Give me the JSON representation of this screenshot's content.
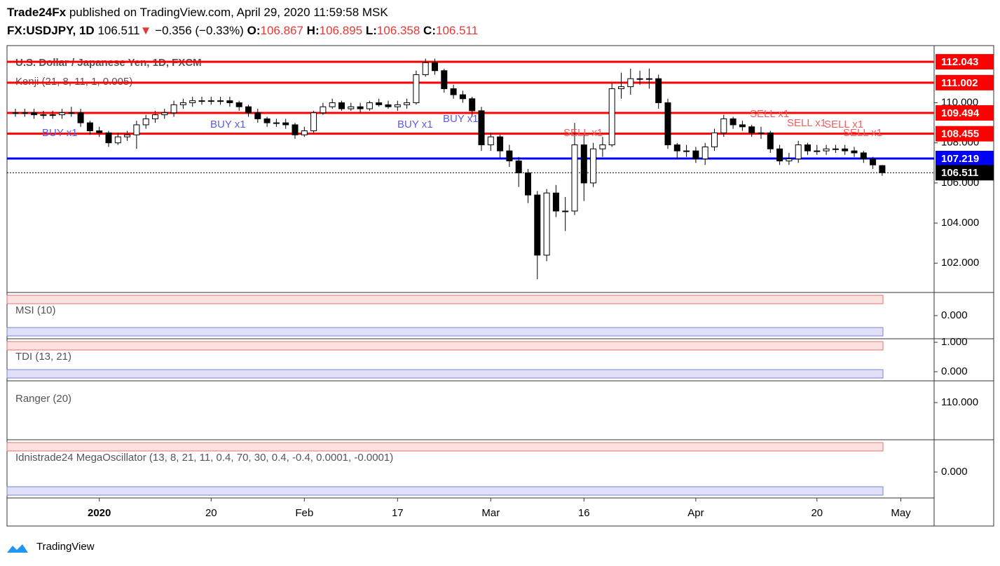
{
  "header": {
    "publisher": "Trade24Fx",
    "published": "published on TradingView.com, April 29, 2020 11:59:58 MSK",
    "symbol": "FX:USDJPY, 1D",
    "price": "106.511",
    "arrow": "▼",
    "change": "−0.356 (−0.33%)",
    "o_label": "O:",
    "o": "106.867",
    "h_label": "H:",
    "h": "106.895",
    "l_label": "L:",
    "l": "106.358",
    "c_label": "C:",
    "c": "106.511"
  },
  "chart_data": {
    "type": "candlestick",
    "title": "U.S. Dollar / Japanese Yen, 1D, FXCM",
    "subtitle": "Kenji (21, 8, 11, 1, 0.005)",
    "categories": [
      null,
      null,
      null,
      null,
      null,
      null,
      null,
      null,
      null,
      "2020",
      null,
      null,
      null,
      null,
      null,
      null,
      null,
      null,
      null,
      null,
      null,
      "20",
      null,
      null,
      null,
      null,
      null,
      null,
      null,
      null,
      null,
      "Feb",
      null,
      null,
      null,
      null,
      null,
      null,
      null,
      null,
      null,
      "17",
      null,
      null,
      null,
      null,
      null,
      null,
      null,
      null,
      null,
      "Mar",
      null,
      null,
      null,
      null,
      null,
      null,
      null,
      null,
      null,
      "16",
      null,
      null,
      null,
      null,
      null,
      null,
      null,
      null,
      null,
      null,
      null,
      "Apr",
      null,
      null,
      null,
      null,
      null,
      null,
      null,
      null,
      null,
      null,
      null,
      null,
      "20",
      null,
      null,
      null,
      null,
      null,
      null,
      null,
      null,
      "May"
    ],
    "open": [
      109.5,
      109.5,
      109.5,
      109.4,
      109.4,
      109.4,
      109.5,
      109.5,
      109.0,
      108.6,
      108.5,
      108.0,
      108.3,
      108.4,
      108.9,
      109.2,
      109.4,
      109.5,
      109.9,
      110.0,
      110.1,
      110.1,
      110.1,
      110.1,
      110.0,
      109.8,
      109.5,
      109.2,
      109.0,
      109.0,
      108.9,
      108.4,
      108.6,
      109.5,
      109.8,
      110.0,
      109.7,
      109.8,
      109.7,
      110.0,
      109.9,
      109.8,
      109.9,
      110.0,
      111.4,
      112.0,
      111.6,
      110.7,
      110.4,
      110.2,
      109.6,
      107.9,
      108.3,
      107.6,
      107.1,
      106.5,
      105.4,
      102.4,
      105.5,
      104.6,
      104.6,
      107.9,
      106.0,
      107.7,
      107.9,
      110.7,
      110.8,
      111.2,
      111.2,
      111.2,
      110.0,
      107.9,
      107.6,
      107.6,
      107.2,
      107.8,
      108.5,
      109.2,
      108.9,
      108.8,
      108.5,
      108.5,
      107.7,
      107.1,
      107.2,
      107.9,
      107.6,
      107.6,
      107.7,
      107.7,
      107.6,
      107.5,
      107.2,
      106.867,
      null,
      null
    ],
    "high": [
      109.7,
      109.7,
      109.7,
      109.6,
      109.6,
      109.7,
      109.8,
      109.7,
      109.1,
      108.8,
      108.6,
      108.5,
      108.6,
      109.1,
      109.4,
      109.6,
      109.7,
      110.1,
      110.2,
      110.3,
      110.3,
      110.3,
      110.3,
      110.3,
      110.1,
      109.9,
      109.7,
      109.3,
      109.2,
      109.2,
      109.0,
      108.8,
      109.6,
      110.0,
      110.2,
      110.1,
      110.0,
      110.0,
      110.1,
      110.2,
      110.1,
      110.1,
      110.2,
      111.6,
      112.2,
      112.2,
      111.7,
      110.9,
      110.6,
      110.3,
      109.8,
      108.5,
      108.4,
      107.9,
      107.3,
      106.7,
      105.6,
      105.7,
      105.9,
      105.3,
      109.0,
      108.4,
      108.0,
      108.3,
      111.0,
      111.5,
      111.7,
      111.6,
      111.7,
      111.4,
      110.2,
      108.0,
      107.9,
      107.8,
      108.0,
      108.7,
      109.4,
      109.3,
      109.1,
      108.9,
      108.8,
      108.6,
      107.9,
      107.5,
      108.1,
      108.0,
      107.9,
      107.9,
      107.9,
      107.9,
      107.8,
      107.6,
      107.3,
      106.895,
      null,
      null
    ],
    "low": [
      109.3,
      109.3,
      109.2,
      109.2,
      109.2,
      109.2,
      109.3,
      108.8,
      108.4,
      108.3,
      107.8,
      107.9,
      108.1,
      107.7,
      108.7,
      109.0,
      109.2,
      109.3,
      109.7,
      109.8,
      109.9,
      109.9,
      109.9,
      109.8,
      109.6,
      109.3,
      109.0,
      108.8,
      108.8,
      108.7,
      108.2,
      108.3,
      108.5,
      109.4,
      109.7,
      109.6,
      109.6,
      109.5,
      109.6,
      109.8,
      109.7,
      109.6,
      109.7,
      109.9,
      111.3,
      111.4,
      110.5,
      110.2,
      110.0,
      109.3,
      107.6,
      107.6,
      107.2,
      106.8,
      105.8,
      105.0,
      101.2,
      102.1,
      104.3,
      103.6,
      104.4,
      105.1,
      105.8,
      107.3,
      107.8,
      110.2,
      110.4,
      110.9,
      110.7,
      109.7,
      107.7,
      107.2,
      107.3,
      107.0,
      106.9,
      107.6,
      108.3,
      108.7,
      108.6,
      108.3,
      108.2,
      107.5,
      106.9,
      106.9,
      107.0,
      107.4,
      107.4,
      107.4,
      107.5,
      107.4,
      107.3,
      107.0,
      106.7,
      106.358,
      null,
      null
    ],
    "close": [
      109.5,
      109.5,
      109.4,
      109.4,
      109.4,
      109.5,
      109.5,
      109.0,
      108.6,
      108.5,
      108.0,
      108.3,
      108.4,
      108.9,
      109.2,
      109.4,
      109.5,
      109.9,
      110.0,
      110.1,
      110.1,
      110.1,
      110.1,
      110.0,
      109.8,
      109.5,
      109.2,
      109.0,
      109.0,
      108.9,
      108.4,
      108.6,
      109.5,
      109.8,
      110.0,
      109.7,
      109.8,
      109.7,
      110.0,
      109.9,
      109.8,
      109.9,
      110.0,
      111.4,
      112.0,
      111.6,
      110.7,
      110.4,
      110.2,
      109.6,
      107.9,
      108.3,
      107.6,
      107.1,
      106.5,
      105.4,
      102.4,
      105.5,
      104.6,
      104.6,
      107.9,
      106.0,
      107.7,
      107.9,
      110.7,
      110.8,
      111.2,
      111.2,
      111.2,
      110.0,
      107.9,
      107.6,
      107.6,
      107.2,
      107.8,
      108.5,
      109.2,
      108.9,
      108.8,
      108.5,
      108.5,
      107.7,
      107.1,
      107.2,
      107.9,
      107.6,
      107.6,
      107.7,
      107.7,
      107.6,
      107.5,
      107.2,
      106.9,
      106.511,
      null,
      null
    ],
    "ylim": [
      100.54,
      112.85
    ],
    "yticks": [
      {
        "value": 102,
        "label": "102.000"
      },
      {
        "value": 104,
        "label": "104.000"
      },
      {
        "value": 106,
        "label": "106.000"
      },
      {
        "value": 108,
        "label": "108.000"
      },
      {
        "value": 110,
        "label": "110.000"
      }
    ],
    "levels": [
      {
        "value": 112.043,
        "color": "#ff0000"
      },
      {
        "value": 111.002,
        "color": "#ff0000"
      },
      {
        "value": 109.494,
        "color": "#ff0000"
      },
      {
        "value": 108.455,
        "color": "#ff0000"
      },
      {
        "value": 107.219,
        "color": "#0000ff"
      },
      {
        "value": 106.511,
        "color": "#000000"
      }
    ],
    "signals": [
      "BUY x1",
      "BUY x1",
      "BUY x1",
      "BUY x1",
      "SELL x1",
      "SELL x1",
      "SELL x1",
      "SELL x1",
      "SELL x1"
    ],
    "panes": [
      {
        "name": "MSI (10)",
        "ylim": [
          -1,
          1
        ],
        "yticks": [
          {
            "value": 0,
            "label": "0.000"
          }
        ]
      },
      {
        "name": "TDI (13, 21)",
        "ylim": [
          -0.31,
          1.12
        ],
        "yticks": [
          {
            "value": 1,
            "label": "1.000"
          },
          {
            "value": 0,
            "label": "0.000"
          }
        ]
      },
      {
        "name": "Ranger (20)",
        "ylim": [
          105.58,
          112.58
        ],
        "yticks": [
          {
            "value": 110,
            "label": "110.000"
          }
        ]
      },
      {
        "name": "Idnistrade24 MegaOscillator (13, 8, 21, 11, 0.4, 70, 30, 0.4, -0.4, 0.0001, -0.0001)",
        "ylim": [
          -0.892,
          1.108
        ],
        "yticks": [
          {
            "value": 0,
            "label": "0.000"
          }
        ]
      }
    ]
  },
  "footer": {
    "brand": "TradingView"
  }
}
